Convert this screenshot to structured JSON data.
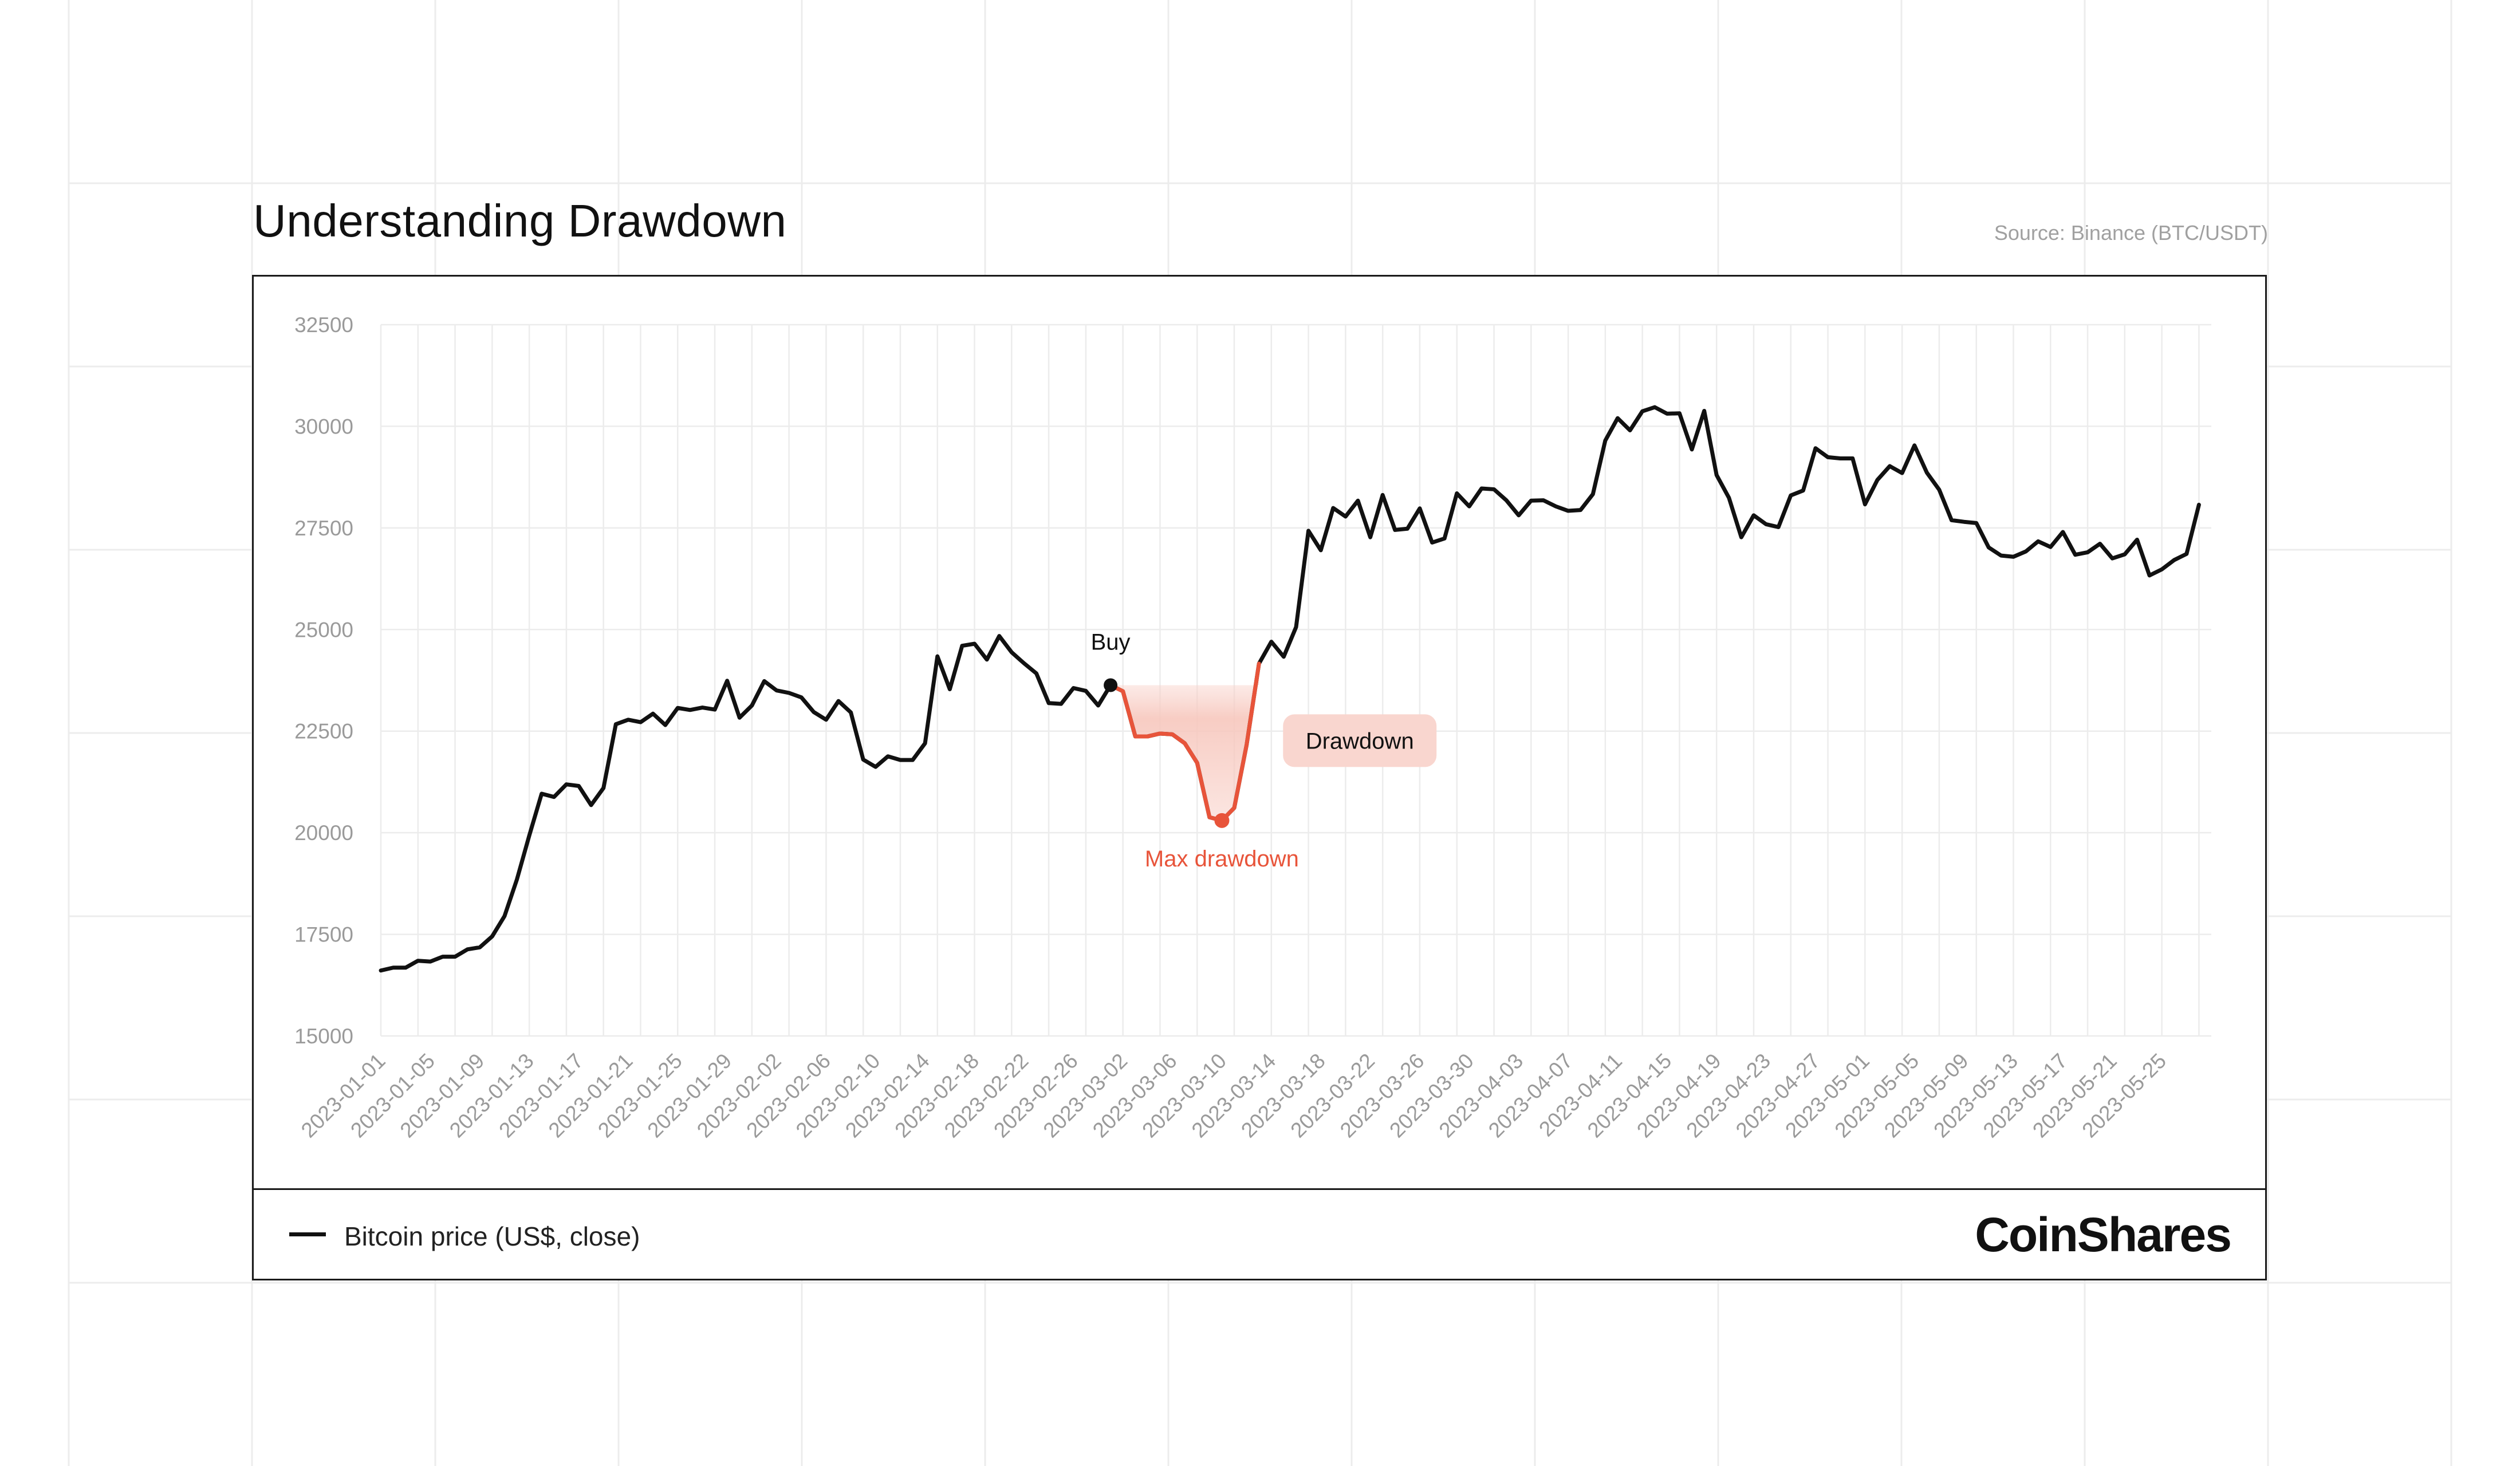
{
  "header": {
    "title": "Understanding Drawdown",
    "source": "Source: Binance (BTC/USDT)"
  },
  "legend": {
    "label": "Bitcoin price (US$, close)"
  },
  "brand": {
    "name": "CoinShares"
  },
  "colors": {
    "line": "#111111",
    "drawdown": "#e8543a",
    "drawdown_fill": "#f9d6cf",
    "grid": "#ececec",
    "tick_text": "#9a9a9a"
  },
  "annotations": {
    "buy": {
      "label": "Buy",
      "date": "2023-03-01"
    },
    "max_drawdown": {
      "label": "Max drawdown",
      "date": "2023-03-10"
    },
    "drawdown_box": {
      "label": "Drawdown"
    }
  },
  "chart_data": {
    "type": "line",
    "title": "Understanding Drawdown",
    "xlabel": "",
    "ylabel": "",
    "ylim": [
      15000,
      32500
    ],
    "yticks": [
      15000,
      17500,
      20000,
      22500,
      25000,
      27500,
      30000,
      32500
    ],
    "xlim": [
      "2023-01-01",
      "2023-05-29"
    ],
    "xticks": [
      "2023-01-01",
      "2023-01-05",
      "2023-01-09",
      "2023-01-13",
      "2023-01-17",
      "2023-01-21",
      "2023-01-25",
      "2023-01-29",
      "2023-02-02",
      "2023-02-06",
      "2023-02-10",
      "2023-02-14",
      "2023-02-18",
      "2023-02-22",
      "2023-02-26",
      "2023-03-02",
      "2023-03-06",
      "2023-03-10",
      "2023-03-14",
      "2023-03-18",
      "2023-03-22",
      "2023-03-26",
      "2023-03-30",
      "2023-04-03",
      "2023-04-07",
      "2023-04-11",
      "2023-04-15",
      "2023-04-19",
      "2023-04-23",
      "2023-04-27",
      "2023-05-01",
      "2023-05-05",
      "2023-05-09",
      "2023-05-13",
      "2023-05-17",
      "2023-05-21",
      "2023-05-25"
    ],
    "grid": true,
    "legend_position": "bottom-left",
    "series": [
      {
        "name": "Bitcoin price (US$, close)",
        "start_date": "2023-01-01",
        "values": [
          16610,
          16680,
          16680,
          16850,
          16830,
          16950,
          16950,
          17130,
          17180,
          17450,
          17950,
          18850,
          19930,
          20960,
          20880,
          21190,
          21150,
          20680,
          21100,
          22670,
          22780,
          22720,
          22930,
          22650,
          23070,
          23020,
          23080,
          23030,
          23740,
          22830,
          23130,
          23730,
          23500,
          23440,
          23330,
          22970,
          22780,
          23240,
          22960,
          21800,
          21620,
          21880,
          21790,
          21790,
          22200,
          24340,
          23530,
          24600,
          24650,
          24260,
          24840,
          24440,
          24170,
          23920,
          23190,
          23170,
          23560,
          23490,
          23130,
          23630,
          23480,
          22370,
          22370,
          22440,
          22420,
          22200,
          21720,
          20380,
          20300,
          20610,
          22160,
          24160,
          24700,
          24330,
          25060,
          27430,
          26950,
          27990,
          27780,
          28170,
          27270,
          28310,
          27450,
          27480,
          27980,
          27140,
          27240,
          28350,
          28030,
          28470,
          28450,
          28180,
          27810,
          28170,
          28180,
          28030,
          27920,
          27940,
          28330,
          29650,
          30200,
          29900,
          30370,
          30470,
          30310,
          30320,
          29430,
          30380,
          28800,
          28240,
          27270,
          27810,
          27590,
          27520,
          28300,
          28420,
          29460,
          29240,
          29210,
          29210,
          28080,
          28680,
          29020,
          28850,
          29530,
          28860,
          28440,
          27690,
          27650,
          27620,
          27020,
          26820,
          26790,
          26920,
          27170,
          27030,
          27400,
          26840,
          26900,
          27110,
          26750,
          26850,
          27210,
          26330,
          26480,
          26710,
          26860,
          28070
        ]
      }
    ]
  }
}
